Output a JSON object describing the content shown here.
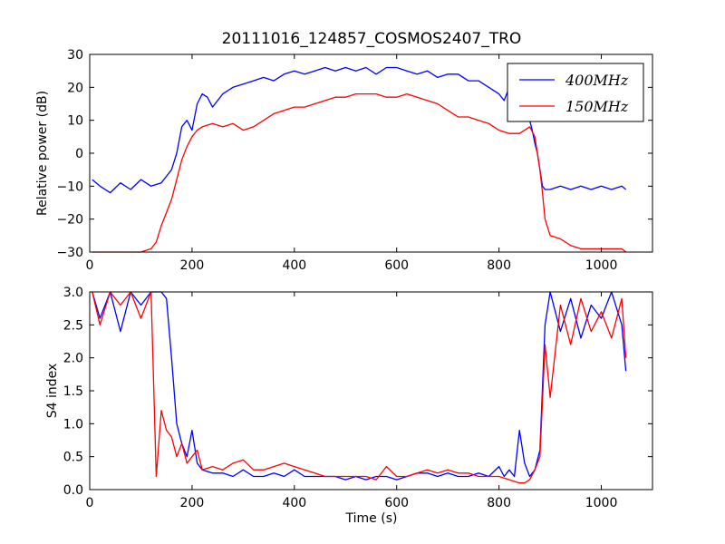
{
  "chart_data": [
    {
      "type": "line",
      "title": "20111016_124857_COSMOS2407_TRO",
      "xlabel": "",
      "ylabel": "Relative power (dB)",
      "xlim": [
        0,
        1100
      ],
      "ylim": [
        -30,
        30
      ],
      "xticks": [
        0,
        200,
        400,
        600,
        800,
        1000
      ],
      "yticks": [
        -30,
        -20,
        -10,
        0,
        10,
        20,
        30
      ],
      "legend_position": "top-right",
      "series": [
        {
          "name": "400MHz",
          "color": "#0000ff",
          "x": [
            5,
            20,
            40,
            60,
            80,
            100,
            120,
            140,
            150,
            160,
            170,
            180,
            190,
            200,
            210,
            220,
            230,
            240,
            260,
            280,
            300,
            320,
            340,
            360,
            380,
            400,
            420,
            440,
            460,
            480,
            500,
            520,
            540,
            560,
            580,
            600,
            620,
            640,
            660,
            680,
            700,
            720,
            740,
            760,
            780,
            800,
            810,
            820,
            830,
            840,
            850,
            860,
            865,
            870,
            875,
            880,
            885,
            890,
            900,
            920,
            940,
            960,
            980,
            1000,
            1020,
            1040,
            1048
          ],
          "y": [
            -8,
            -10,
            -12,
            -9,
            -11,
            -8,
            -10,
            -9,
            -7,
            -5,
            0,
            8,
            10,
            7,
            15,
            18,
            17,
            14,
            18,
            20,
            21,
            22,
            23,
            22,
            24,
            25,
            24,
            25,
            26,
            25,
            26,
            25,
            26,
            24,
            26,
            26,
            25,
            24,
            25,
            23,
            24,
            24,
            22,
            22,
            20,
            18,
            16,
            20,
            18,
            17,
            12,
            10,
            7,
            3,
            0,
            -5,
            -10,
            -11,
            -11,
            -10,
            -11,
            -10,
            -11,
            -10,
            -11,
            -10,
            -11
          ]
        },
        {
          "name": "150MHz",
          "color": "#ff0000",
          "x": [
            5,
            20,
            40,
            60,
            80,
            100,
            120,
            130,
            140,
            150,
            160,
            170,
            180,
            190,
            200,
            210,
            220,
            240,
            260,
            280,
            300,
            320,
            340,
            360,
            380,
            400,
            420,
            440,
            460,
            480,
            500,
            520,
            540,
            560,
            580,
            600,
            620,
            640,
            660,
            680,
            700,
            720,
            740,
            760,
            780,
            800,
            820,
            840,
            850,
            860,
            870,
            875,
            880,
            885,
            890,
            900,
            920,
            940,
            960,
            980,
            1000,
            1020,
            1040,
            1048
          ],
          "y": [
            -30,
            -30,
            -30,
            -30,
            -30,
            -30,
            -29,
            -27,
            -22,
            -18,
            -14,
            -8,
            -2,
            2,
            5,
            7,
            8,
            9,
            8,
            9,
            7,
            8,
            10,
            12,
            13,
            14,
            14,
            15,
            16,
            17,
            17,
            18,
            18,
            18,
            17,
            17,
            18,
            17,
            16,
            15,
            13,
            11,
            11,
            10,
            9,
            7,
            6,
            6,
            7,
            8,
            5,
            0,
            -5,
            -12,
            -20,
            -25,
            -26,
            -28,
            -29,
            -29,
            -29,
            -29,
            -29,
            -30
          ]
        }
      ]
    },
    {
      "type": "line",
      "title": "",
      "xlabel": "Time (s)",
      "ylabel": "S4 index",
      "xlim": [
        0,
        1100
      ],
      "ylim": [
        0,
        3
      ],
      "xticks": [
        0,
        200,
        400,
        600,
        800,
        1000
      ],
      "yticks": [
        0.0,
        0.5,
        1.0,
        1.5,
        2.0,
        2.5,
        3.0
      ],
      "series": [
        {
          "name": "400MHz",
          "color": "#0000ff",
          "x": [
            5,
            20,
            40,
            60,
            80,
            100,
            120,
            140,
            150,
            160,
            170,
            180,
            190,
            200,
            210,
            220,
            240,
            260,
            280,
            300,
            320,
            340,
            360,
            380,
            400,
            420,
            440,
            460,
            480,
            500,
            520,
            540,
            560,
            580,
            600,
            620,
            640,
            660,
            680,
            700,
            720,
            740,
            760,
            780,
            800,
            810,
            820,
            830,
            840,
            850,
            860,
            870,
            880,
            890,
            900,
            920,
            940,
            960,
            980,
            1000,
            1020,
            1040,
            1048
          ],
          "y": [
            3.0,
            2.6,
            3.0,
            2.4,
            3.0,
            2.8,
            3.0,
            3.0,
            2.9,
            2.0,
            1.0,
            0.7,
            0.5,
            0.9,
            0.4,
            0.3,
            0.25,
            0.25,
            0.2,
            0.3,
            0.2,
            0.2,
            0.25,
            0.2,
            0.3,
            0.2,
            0.2,
            0.2,
            0.2,
            0.15,
            0.2,
            0.15,
            0.2,
            0.2,
            0.15,
            0.2,
            0.25,
            0.25,
            0.2,
            0.25,
            0.2,
            0.2,
            0.25,
            0.2,
            0.35,
            0.2,
            0.3,
            0.2,
            0.9,
            0.4,
            0.2,
            0.3,
            0.6,
            2.5,
            3.0,
            2.4,
            2.9,
            2.3,
            2.8,
            2.6,
            3.0,
            2.5,
            1.8
          ]
        },
        {
          "name": "150MHz",
          "color": "#ff0000",
          "x": [
            5,
            20,
            40,
            60,
            80,
            100,
            120,
            130,
            140,
            150,
            160,
            170,
            180,
            190,
            200,
            210,
            220,
            240,
            260,
            280,
            300,
            320,
            340,
            360,
            380,
            400,
            420,
            440,
            460,
            480,
            500,
            520,
            540,
            560,
            580,
            600,
            620,
            640,
            660,
            680,
            700,
            720,
            740,
            760,
            780,
            800,
            820,
            840,
            850,
            860,
            870,
            880,
            890,
            900,
            920,
            940,
            960,
            980,
            1000,
            1020,
            1040,
            1048
          ],
          "y": [
            3.0,
            2.5,
            3.0,
            2.8,
            3.0,
            2.6,
            3.0,
            0.2,
            1.2,
            0.9,
            0.8,
            0.5,
            0.7,
            0.4,
            0.5,
            0.6,
            0.3,
            0.35,
            0.3,
            0.4,
            0.45,
            0.3,
            0.3,
            0.35,
            0.4,
            0.35,
            0.3,
            0.25,
            0.2,
            0.2,
            0.2,
            0.2,
            0.2,
            0.15,
            0.35,
            0.2,
            0.2,
            0.25,
            0.3,
            0.25,
            0.3,
            0.25,
            0.25,
            0.2,
            0.2,
            0.2,
            0.15,
            0.1,
            0.1,
            0.15,
            0.3,
            0.5,
            2.2,
            1.4,
            2.8,
            2.2,
            2.9,
            2.4,
            2.7,
            2.3,
            2.9,
            2.0
          ]
        }
      ]
    }
  ]
}
